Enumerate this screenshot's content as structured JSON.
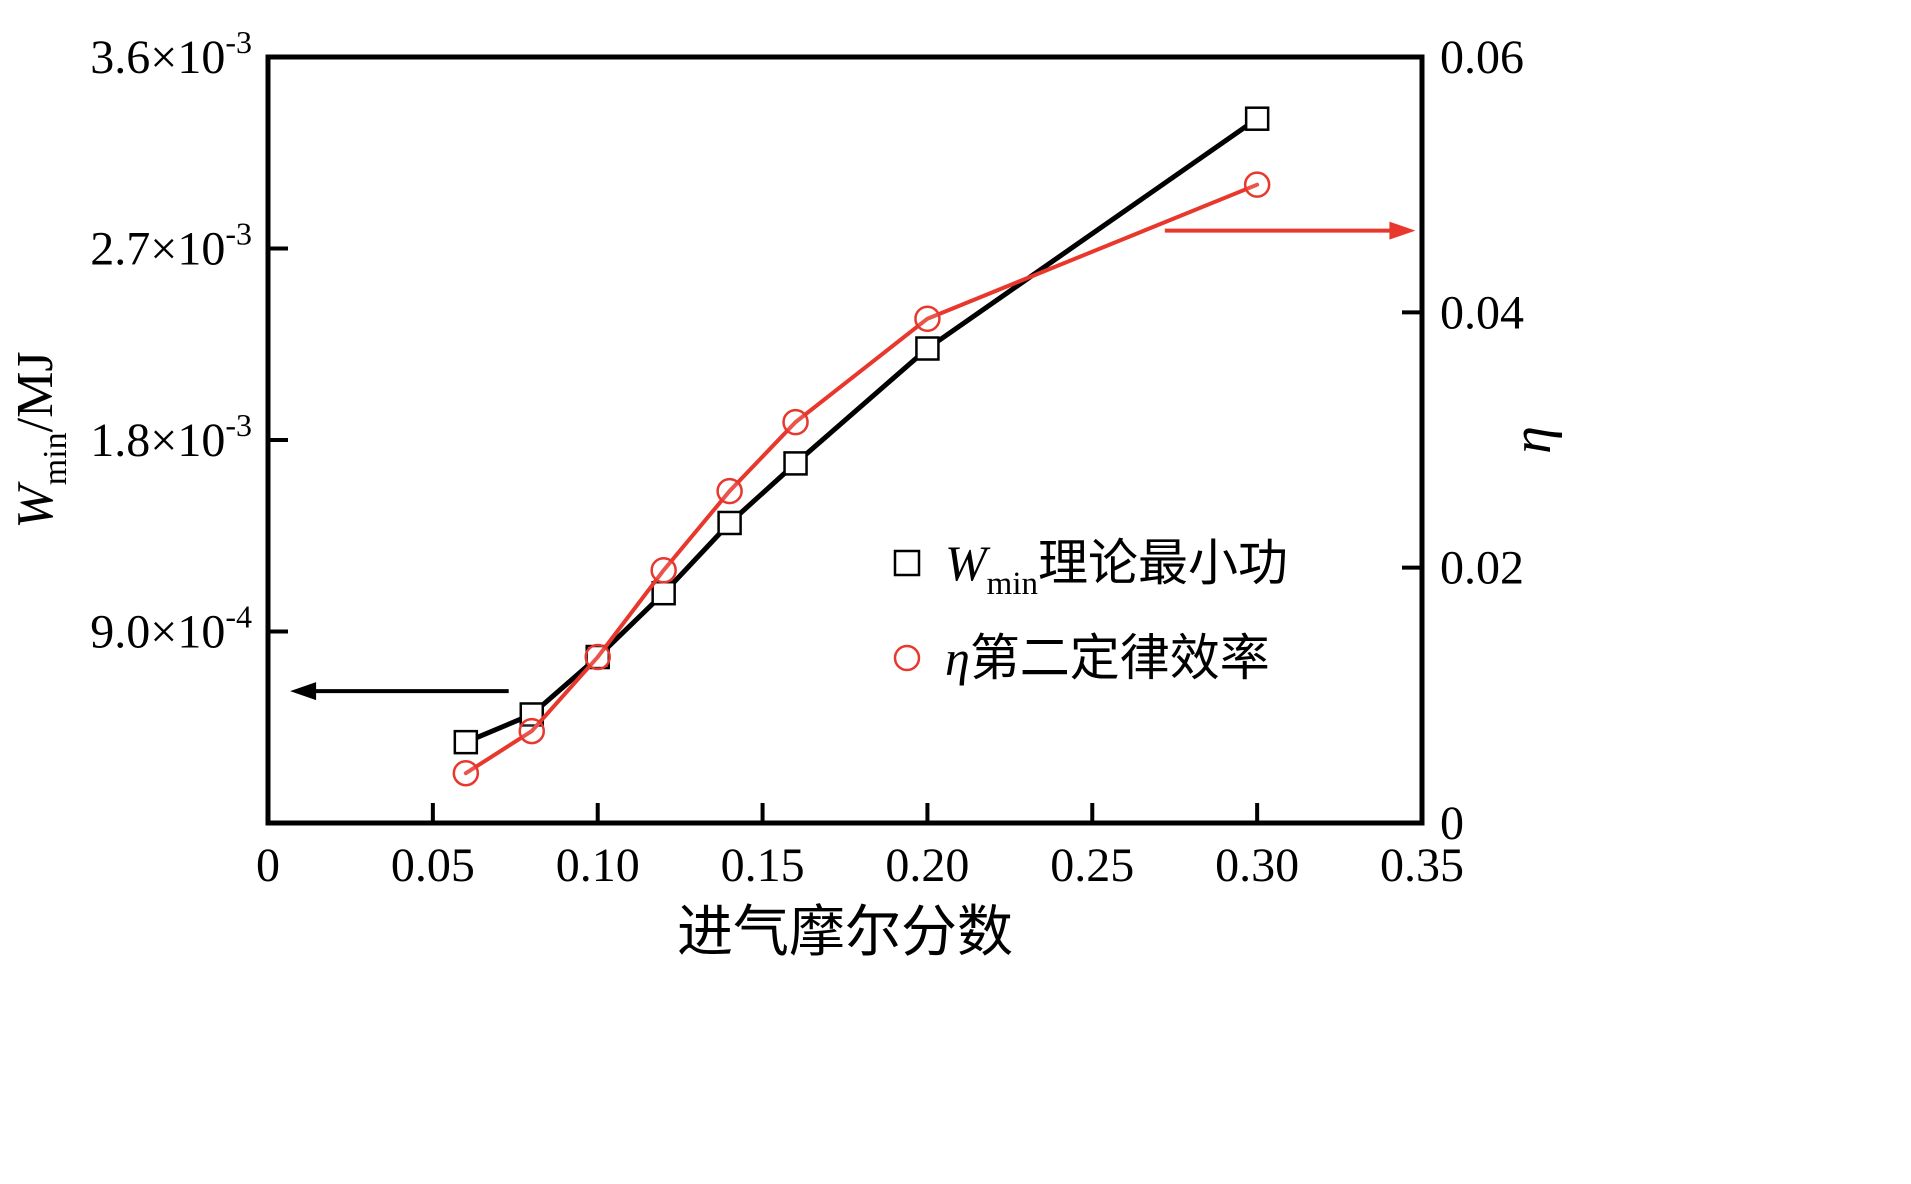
{
  "chart_data": {
    "type": "line",
    "title": "",
    "xlabel": "进气摩尔分数",
    "ylabel_left_parts": [
      {
        "t": "W",
        "f": "italic"
      },
      {
        "t": "min",
        "f": "sub"
      },
      {
        "t": "/MJ",
        "f": "normal"
      }
    ],
    "ylabel_right_parts": [
      {
        "t": "η",
        "f": "italic"
      }
    ],
    "xlim": [
      0,
      0.35
    ],
    "xticks": [
      0,
      0.05,
      0.1,
      0.15,
      0.2,
      0.25,
      0.3,
      0.35
    ],
    "xtick_labels": [
      "0",
      "0.05",
      "0.10",
      "0.15",
      "0.20",
      "0.25",
      "0.30",
      "0.35"
    ],
    "ylim_left": [
      0,
      0.0036
    ],
    "yticks_left": [
      0.0009,
      0.0018,
      0.0027,
      0.0036
    ],
    "ytick_labels_left": [
      {
        "base": "9.0×10",
        "exp": "-4"
      },
      {
        "base": "1.8×10",
        "exp": "-3"
      },
      {
        "base": "2.7×10",
        "exp": "-3"
      },
      {
        "base": "3.6×10",
        "exp": "-3"
      }
    ],
    "ylim_right": [
      0,
      0.06
    ],
    "yticks_right": [
      0,
      0.02,
      0.04,
      0.06
    ],
    "ytick_labels_right": [
      "0",
      "0.02",
      "0.04",
      "0.06"
    ],
    "grid": false,
    "legend_position": "inside-right-middle",
    "x": [
      0.06,
      0.08,
      0.1,
      0.12,
      0.14,
      0.16,
      0.2,
      0.3
    ],
    "series": [
      {
        "name": "Wmin 理论最小功",
        "axis": "left",
        "marker": "square",
        "color": "#000000",
        "line_width": 5,
        "values": [
          0.00038,
          0.00051,
          0.00078,
          0.00108,
          0.00141,
          0.00169,
          0.00223,
          0.00331
        ]
      },
      {
        "name": "η 第二定律效率",
        "axis": "right",
        "marker": "circle",
        "color": "#e8372c",
        "line_width": 4,
        "values": [
          0.0039,
          0.0072,
          0.013,
          0.0198,
          0.026,
          0.0314,
          0.0395,
          0.05
        ]
      }
    ],
    "legend_items": [
      {
        "marker": "square",
        "color": "#000000",
        "parts": [
          {
            "t": "W",
            "f": "italic"
          },
          {
            "t": "min",
            "f": "sub"
          },
          {
            "t": "理论最小功",
            "f": "normal"
          }
        ]
      },
      {
        "marker": "circle",
        "color": "#e8372c",
        "parts": [
          {
            "t": "η",
            "f": "italic"
          },
          {
            "t": "第二定律效率",
            "f": "normal"
          }
        ]
      }
    ],
    "annotations": [
      {
        "kind": "arrow",
        "axis": "left",
        "from_x": 0.073,
        "to_x": 0.0067,
        "y": 0.00062,
        "color": "#000000"
      },
      {
        "kind": "arrow",
        "axis": "right",
        "from_x": 0.272,
        "to_x": 0.348,
        "y": 0.0464,
        "color": "#e8372c"
      }
    ],
    "colors": {
      "axis": "#000000",
      "background": "#ffffff",
      "series_black": "#000000",
      "series_red": "#e8372c"
    }
  }
}
